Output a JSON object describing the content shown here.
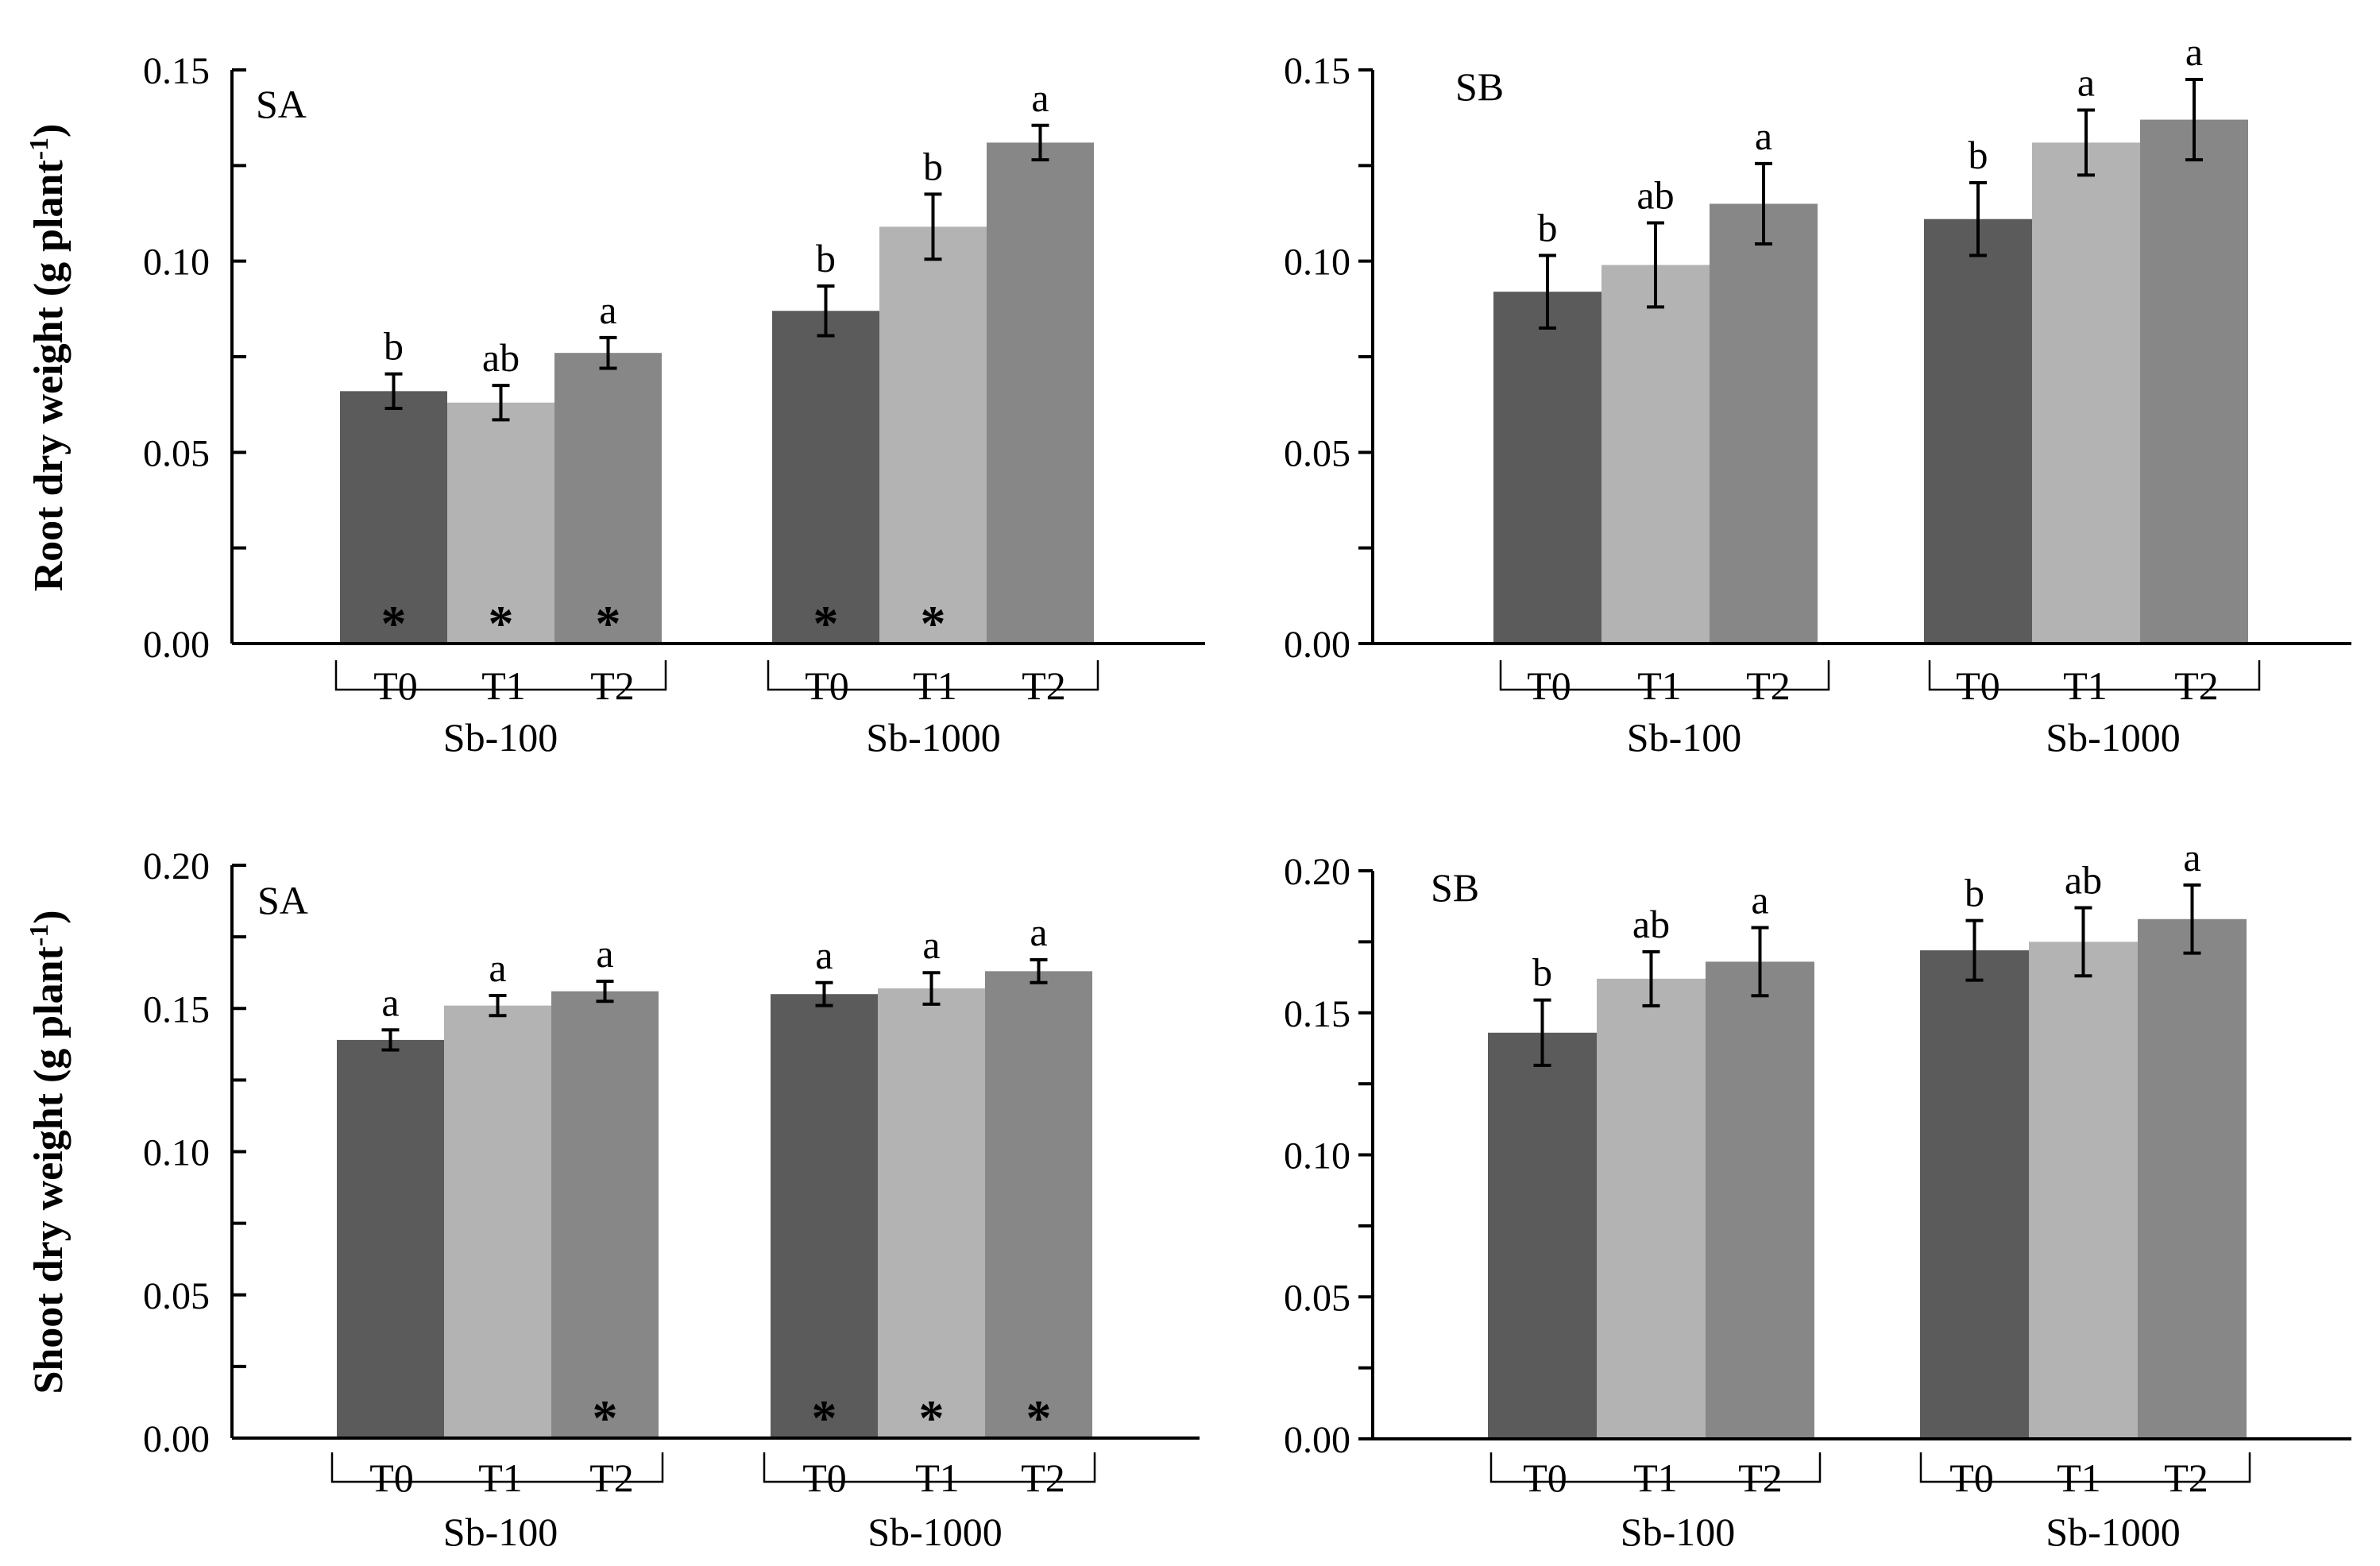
{
  "colors": {
    "T0": "#5b5b5b",
    "T1": "#b3b3b3",
    "T2": "#878787",
    "axis": "#000000",
    "star_on_dark": "#ffffff",
    "star_on_light": "#000000"
  },
  "chart_data": [
    {
      "type": "bar",
      "panel": "SA",
      "ylabel": "Root dry weight (g plant-1)",
      "ylabel_main": "Root dry weight (g plant",
      "ylabel_sup": "-1",
      "ylabel_close": ")",
      "ylim": [
        0,
        0.15
      ],
      "yticks": [
        "0.00",
        "0.05",
        "0.10",
        "0.15"
      ],
      "groups": [
        "Sb-100",
        "Sb-1000"
      ],
      "treatments": [
        "T0",
        "T1",
        "T2"
      ],
      "series": [
        {
          "group": "Sb-100",
          "values": [
            0.066,
            0.063,
            0.076
          ],
          "errors": [
            0.0045,
            0.0045,
            0.004
          ],
          "letters": [
            "b",
            "ab",
            "a"
          ],
          "stars": [
            true,
            true,
            true
          ]
        },
        {
          "group": "Sb-1000",
          "values": [
            0.087,
            0.109,
            0.131
          ],
          "errors": [
            0.0065,
            0.0085,
            0.0045
          ],
          "letters": [
            "b",
            "b",
            "a"
          ],
          "stars": [
            true,
            true,
            false
          ]
        }
      ]
    },
    {
      "type": "bar",
      "panel": "SB",
      "ylabel": "",
      "ylim": [
        0,
        0.15
      ],
      "yticks": [
        "0.00",
        "0.05",
        "0.10",
        "0.15"
      ],
      "groups": [
        "Sb-100",
        "Sb-1000"
      ],
      "treatments": [
        "T0",
        "T1",
        "T2"
      ],
      "series": [
        {
          "group": "Sb-100",
          "values": [
            0.092,
            0.099,
            0.115
          ],
          "errors": [
            0.0095,
            0.011,
            0.0105
          ],
          "letters": [
            "b",
            "ab",
            "a"
          ],
          "stars": [
            false,
            false,
            false
          ]
        },
        {
          "group": "Sb-1000",
          "values": [
            0.111,
            0.131,
            0.137
          ],
          "errors": [
            0.0095,
            0.0085,
            0.0105
          ],
          "letters": [
            "b",
            "a",
            "a"
          ],
          "stars": [
            false,
            false,
            false
          ]
        }
      ]
    },
    {
      "type": "bar",
      "panel": "SA",
      "ylabel": "Shoot dry weight (g plant-1)",
      "ylabel_main": "Shoot dry weight (g plant",
      "ylabel_sup": "-1",
      "ylabel_close": ")",
      "ylim": [
        0,
        0.2
      ],
      "yticks": [
        "0.00",
        "0.05",
        "0.10",
        "0.15",
        "0.20"
      ],
      "groups": [
        "Sb-100",
        "Sb-1000"
      ],
      "treatments": [
        "T0",
        "T1",
        "T2"
      ],
      "series": [
        {
          "group": "Sb-100",
          "values": [
            0.139,
            0.151,
            0.156
          ],
          "errors": [
            0.0035,
            0.0035,
            0.0035
          ],
          "letters": [
            "a",
            "a",
            "a"
          ],
          "stars": [
            false,
            false,
            true
          ]
        },
        {
          "group": "Sb-1000",
          "values": [
            0.155,
            0.157,
            0.163
          ],
          "errors": [
            0.004,
            0.0055,
            0.004
          ],
          "letters": [
            "a",
            "a",
            "a"
          ],
          "stars": [
            true,
            true,
            true
          ]
        }
      ]
    },
    {
      "type": "bar",
      "panel": "SB",
      "ylabel": "",
      "ylim": [
        0,
        0.2
      ],
      "yticks": [
        "0.00",
        "0.05",
        "0.10",
        "0.15",
        "0.20"
      ],
      "groups": [
        "Sb-100",
        "Sb-1000"
      ],
      "treatments": [
        "T0",
        "T1",
        "T2"
      ],
      "series": [
        {
          "group": "Sb-100",
          "values": [
            0.143,
            0.162,
            0.168
          ],
          "errors": [
            0.0115,
            0.0095,
            0.012
          ],
          "letters": [
            "b",
            "ab",
            "a"
          ],
          "stars": [
            false,
            false,
            false
          ]
        },
        {
          "group": "Sb-1000",
          "values": [
            0.172,
            0.175,
            0.183
          ],
          "errors": [
            0.0105,
            0.012,
            0.012
          ],
          "letters": [
            "b",
            "ab",
            "a"
          ],
          "stars": [
            false,
            false,
            false
          ]
        }
      ]
    }
  ]
}
